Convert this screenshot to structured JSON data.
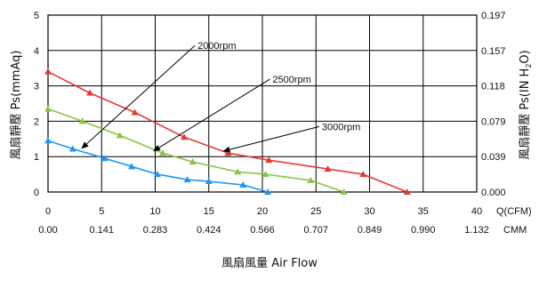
{
  "chart_data": {
    "type": "line",
    "xlabel": "風扇風量 Air Flow",
    "ylabel_left": "風扇靜壓 Ps(mmAq)",
    "ylabel_right_main": "風扇靜壓 Ps(IN H",
    "ylabel_right_sub": "2",
    "ylabel_right_close": "O)",
    "x_unit_primary": "Q(CFM)",
    "x_unit_secondary": "CMM",
    "xlim": [
      0,
      40
    ],
    "ylim": [
      0,
      5
    ],
    "x_ticks": [
      0,
      5,
      10,
      15,
      20,
      25,
      30,
      35,
      40
    ],
    "x_ticks_labels": [
      "0",
      "5",
      "10",
      "15",
      "20",
      "25",
      "30",
      "35",
      "40"
    ],
    "x_ticks_cmm": [
      "0.00",
      "0.141",
      "0.283",
      "0.424",
      "0.566",
      "0.707",
      "0.849",
      "0.990",
      "1.132"
    ],
    "y_ticks": [
      0,
      1,
      2,
      3,
      4,
      5
    ],
    "y_ticks_labels": [
      "0",
      "1",
      "2",
      "3",
      "4",
      "5"
    ],
    "y_ticks_right": [
      "0.000",
      "0.039",
      "0.079",
      "0.118",
      "0.157",
      "0.197"
    ],
    "grid": true,
    "series": [
      {
        "name": "2000rpm",
        "color": "#2196f3",
        "x": [
          0,
          2.3,
          5.3,
          7.8,
          10.2,
          13,
          15,
          18.2,
          20.5
        ],
        "y": [
          1.45,
          1.22,
          0.95,
          0.72,
          0.5,
          0.35,
          0.3,
          0.2,
          0
        ]
      },
      {
        "name": "2500rpm",
        "color": "#8bc34a",
        "x": [
          0,
          3.2,
          6.7,
          10.7,
          13.5,
          17.7,
          20.3,
          24.5,
          27.6
        ],
        "y": [
          2.35,
          2.0,
          1.6,
          1.1,
          0.85,
          0.57,
          0.5,
          0.33,
          0
        ]
      },
      {
        "name": "3000rpm",
        "color": "#e53935",
        "x": [
          0,
          3.9,
          8.1,
          12.7,
          16.8,
          20.6,
          26.1,
          29.4,
          33.5
        ],
        "y": [
          3.4,
          2.8,
          2.25,
          1.55,
          1.1,
          0.9,
          0.65,
          0.5,
          0
        ]
      }
    ],
    "annotations": [
      {
        "text": "2000rpm",
        "label_x": 13.7,
        "label_y": 4.14,
        "arrow_x": 3.1,
        "arrow_y": 1.22
      },
      {
        "text": "2500rpm",
        "label_x": 20.7,
        "label_y": 3.19,
        "arrow_x": 9.8,
        "arrow_y": 1.15
      },
      {
        "text": "3000rpm",
        "label_x": 25.3,
        "label_y": 1.85,
        "arrow_x": 16.3,
        "arrow_y": 1.15
      }
    ]
  }
}
